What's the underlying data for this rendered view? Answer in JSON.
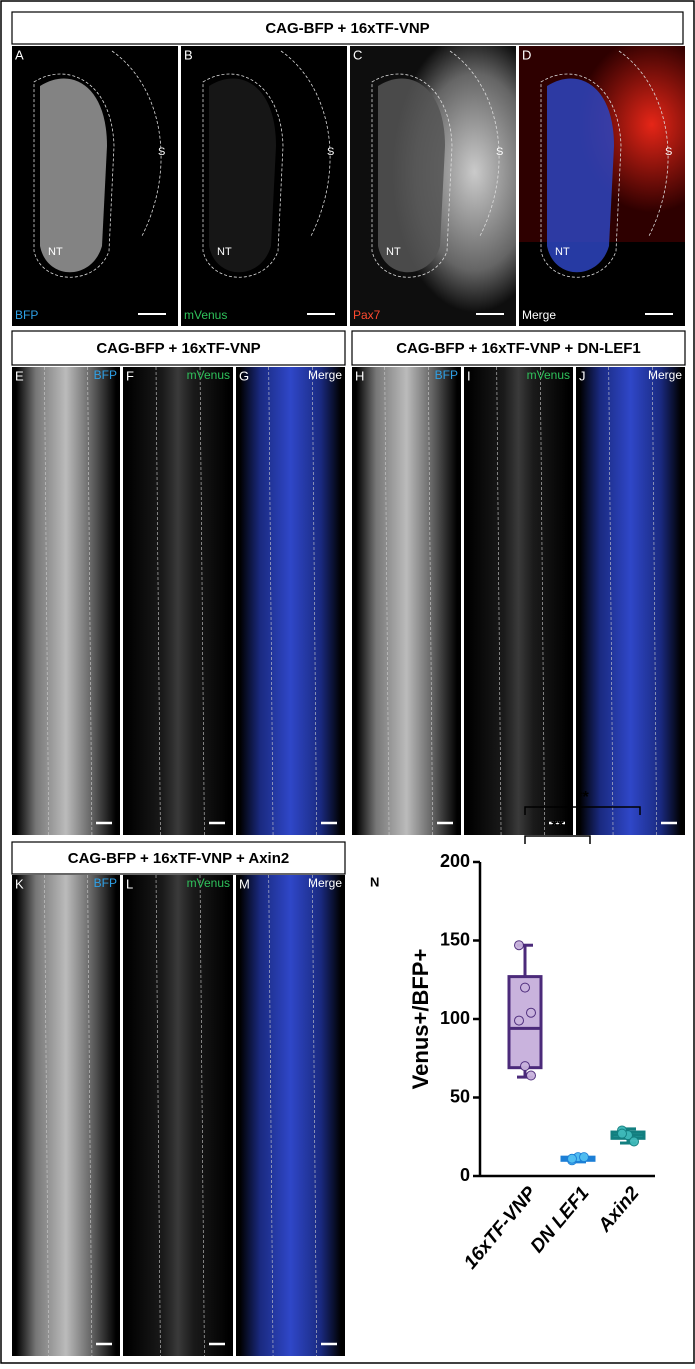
{
  "headers": [
    "CAG-BFP + 16xTF-VNP",
    "CAG-BFP + 16xTF-VNP",
    "CAG-BFP + 16xTF-VNP + DN-LEF1",
    "CAG-BFP + 16xTF-VNP + Axin2"
  ],
  "regions": [
    "NT",
    "S"
  ],
  "panels": [
    {
      "letter": "A",
      "channel": "BFP"
    },
    {
      "letter": "B",
      "channel": "mVenus"
    },
    {
      "letter": "C",
      "channel": "Pax7"
    },
    {
      "letter": "D",
      "channel": "Merge"
    },
    {
      "letter": "E",
      "channel": "BFP"
    },
    {
      "letter": "F",
      "channel": "mVenus"
    },
    {
      "letter": "G",
      "channel": "Merge"
    },
    {
      "letter": "H",
      "channel": "BFP"
    },
    {
      "letter": "I",
      "channel": "mVenus"
    },
    {
      "letter": "J",
      "channel": "Merge"
    },
    {
      "letter": "K",
      "channel": "BFP"
    },
    {
      "letter": "L",
      "channel": "mVenus"
    },
    {
      "letter": "M",
      "channel": "Merge"
    }
  ],
  "chart_data": {
    "type": "box",
    "letter": "N",
    "y_label": "Venus+/BFP+",
    "categories": [
      "16xTF-VNP",
      "DN LEF1",
      "Axin2"
    ],
    "ylim": [
      0,
      200
    ],
    "yticks": [
      0,
      50,
      100,
      150,
      200
    ],
    "series": [
      {
        "color": "#4b2a7a",
        "fill": "#c9b3dd",
        "min": 63,
        "q1": 69,
        "median": 94,
        "q3": 127,
        "max": 147,
        "points": [
          147,
          120,
          104,
          99,
          70,
          64
        ]
      },
      {
        "color": "#1c7fd6",
        "fill": "#52c0f2",
        "min": 9,
        "q1": 10,
        "median": 11,
        "q3": 12,
        "max": 13,
        "points": [
          10,
          12,
          12,
          11
        ]
      },
      {
        "color": "#137f80",
        "fill": "#3fb9b9",
        "min": 21,
        "q1": 24,
        "median": 26,
        "q3": 28,
        "max": 30,
        "points": [
          29,
          26,
          22,
          27
        ]
      }
    ],
    "annotations": [
      {
        "text": "**"
      },
      {
        "text": "**"
      }
    ]
  }
}
